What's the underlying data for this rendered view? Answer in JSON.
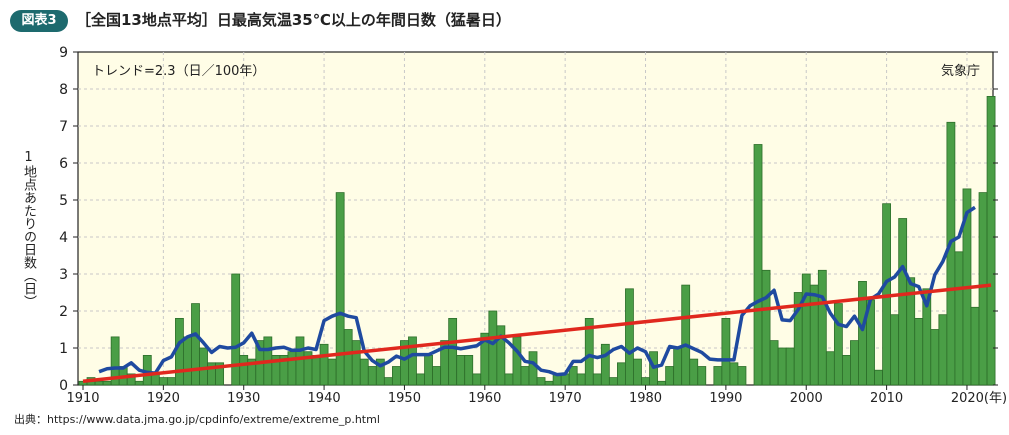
{
  "header": {
    "badge": "図表3",
    "title": "［全国13地点平均］日最高気温35℃以上の年間日数（猛暑日）"
  },
  "source": "出典：https://www.data.jma.go.jp/cpdinfo/extreme/extreme_p.html",
  "chart_data": {
    "type": "bar",
    "title": "［全国13地点平均］日最高気温35℃以上の年間日数（猛暑日）",
    "ylabel": "1地点あたりの日数（日）",
    "xlabel": "(年)",
    "ylim": [
      0,
      9
    ],
    "xlim": [
      1910,
      2023
    ],
    "yticks": [
      "0",
      "1",
      "2",
      "3",
      "4",
      "5",
      "6",
      "7",
      "8",
      "9"
    ],
    "xticks": [
      "1910",
      "1920",
      "1930",
      "1940",
      "1950",
      "1960",
      "1970",
      "1980",
      "1990",
      "2000",
      "2010",
      "2020(年)"
    ],
    "grid": true,
    "annotation_trend": "トレンド=2.3（日／100年）",
    "annotation_source": "気象庁",
    "colors": {
      "bar": "#4a9e46",
      "bar_edge": "#2d6e2a",
      "moving_avg": "#1f4aa0",
      "trend": "#e0281e",
      "plot_bg": "#fffde6"
    },
    "years_start": 1910,
    "values": [
      0.1,
      0.2,
      0.1,
      0.1,
      1.3,
      0.5,
      0.3,
      0.1,
      0.8,
      0.3,
      0.2,
      0.2,
      1.8,
      1.3,
      2.2,
      1.0,
      0.6,
      0.6,
      0,
      3.0,
      0.8,
      0.7,
      1.2,
      1.3,
      0.8,
      0.8,
      0.9,
      1.3,
      0.9,
      0.8,
      1.1,
      0.7,
      5.2,
      1.5,
      1.2,
      0.7,
      0.5,
      0.7,
      0.2,
      0.5,
      1.2,
      1.3,
      0.3,
      0.8,
      0.5,
      1.2,
      1.8,
      0.8,
      0.8,
      0.3,
      1.4,
      2.0,
      1.6,
      0.3,
      1.3,
      0.5,
      0.9,
      0.2,
      0.1,
      0.3,
      0.3,
      0.5,
      0.3,
      1.8,
      0.3,
      1.1,
      0.2,
      0.6,
      2.6,
      0.7,
      0.2,
      0.9,
      0.1,
      0.5,
      1.0,
      2.7,
      0.7,
      0.5,
      0,
      0.5,
      1.8,
      0.6,
      0.5,
      0,
      6.5,
      3.1,
      1.2,
      1.0,
      1.0,
      2.5,
      3.0,
      2.7,
      3.1,
      0.9,
      2.2,
      0.8,
      1.2,
      2.8,
      2.3,
      0.4,
      4.9,
      1.9,
      4.5,
      2.9,
      1.8,
      2.6,
      1.5,
      1.9,
      7.1,
      3.6,
      5.3,
      2.1,
      5.2,
      7.8
    ],
    "series": [
      {
        "name": "年間日数",
        "type": "bar"
      },
      {
        "name": "5年移動平均",
        "type": "line",
        "note": "centered 5-year moving average of values"
      },
      {
        "name": "トレンド",
        "type": "line",
        "x": [
          1910,
          2023
        ],
        "y": [
          0.1,
          2.7
        ]
      }
    ]
  }
}
